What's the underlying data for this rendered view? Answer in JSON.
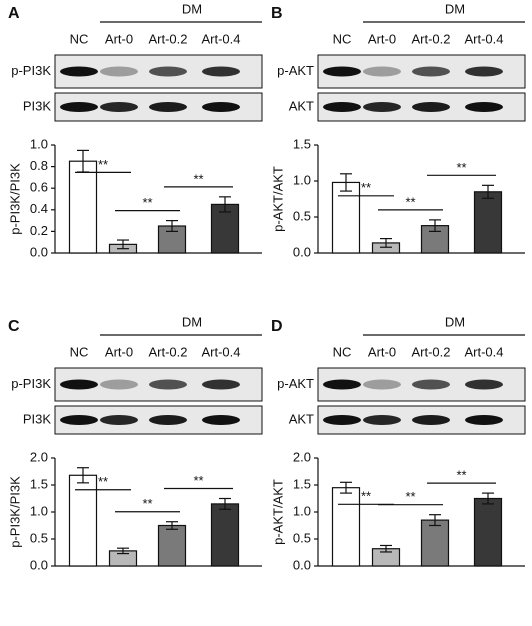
{
  "chart_data": [
    {
      "type": "bar",
      "panel": "A",
      "group_label": "DM",
      "blot_labels": [
        "p-PI3K",
        "PI3K"
      ],
      "categories": [
        "NC",
        "Art-0",
        "Art-0.2",
        "Art-0.4"
      ],
      "ylabel": "p-PI3K/PI3K",
      "values": [
        0.85,
        0.08,
        0.25,
        0.45
      ],
      "errors": [
        0.1,
        0.04,
        0.05,
        0.07
      ],
      "colors": [
        "#ffffff",
        "#b8b8b8",
        "#7a7a7a",
        "#383838"
      ],
      "ylim": [
        0,
        1.0
      ],
      "yticks": [
        {
          "value": 0,
          "label": "0.0"
        },
        0.2,
        0.4,
        0.6,
        0.8,
        {
          "value": 1.0,
          "label": "1.0"
        }
      ],
      "significance": [
        "**",
        "**",
        "**"
      ]
    },
    {
      "type": "bar",
      "panel": "B",
      "group_label": "DM",
      "blot_labels": [
        "p-AKT",
        "AKT"
      ],
      "categories": [
        "NC",
        "Art-0",
        "Art-0.2",
        "Art-0.4"
      ],
      "ylabel": "p-AKT/AKT",
      "values": [
        0.98,
        0.14,
        0.38,
        0.85
      ],
      "errors": [
        0.12,
        0.06,
        0.08,
        0.09
      ],
      "colors": [
        "#ffffff",
        "#b8b8b8",
        "#7a7a7a",
        "#383838"
      ],
      "ylim": [
        0,
        1.5
      ],
      "yticks": [
        {
          "value": 0,
          "label": "0.0"
        },
        0.5,
        {
          "value": 1.0,
          "label": "1.0"
        },
        1.5
      ],
      "significance": [
        "**",
        "**",
        "**"
      ]
    },
    {
      "type": "bar",
      "panel": "C",
      "group_label": "DM",
      "blot_labels": [
        "p-PI3K",
        "PI3K"
      ],
      "categories": [
        "NC",
        "Art-0",
        "Art-0.2",
        "Art-0.4"
      ],
      "ylabel": "p-PI3K/PI3K",
      "values": [
        1.68,
        0.28,
        0.75,
        1.15
      ],
      "errors": [
        0.14,
        0.05,
        0.07,
        0.1
      ],
      "colors": [
        "#ffffff",
        "#b8b8b8",
        "#7a7a7a",
        "#383838"
      ],
      "ylim": [
        0,
        2.0
      ],
      "yticks": [
        {
          "value": 0,
          "label": "0.0"
        },
        0.5,
        {
          "value": 1.0,
          "label": "1.0"
        },
        1.5,
        {
          "value": 2.0,
          "label": "2.0"
        }
      ],
      "significance": [
        "**",
        "**",
        "**"
      ]
    },
    {
      "type": "bar",
      "panel": "D",
      "group_label": "DM",
      "blot_labels": [
        "p-AKT",
        "AKT"
      ],
      "categories": [
        "NC",
        "Art-0",
        "Art-0.2",
        "Art-0.4"
      ],
      "ylabel": "p-AKT/AKT",
      "values": [
        1.45,
        0.32,
        0.85,
        1.25
      ],
      "errors": [
        0.1,
        0.06,
        0.1,
        0.1
      ],
      "colors": [
        "#ffffff",
        "#b8b8b8",
        "#7a7a7a",
        "#383838"
      ],
      "ylim": [
        0,
        2.0
      ],
      "yticks": [
        {
          "value": 0,
          "label": "0.0"
        },
        0.5,
        {
          "value": 1.0,
          "label": "1.0"
        },
        1.5,
        {
          "value": 2.0,
          "label": "2.0"
        }
      ],
      "significance": [
        "**",
        "**",
        "**"
      ]
    }
  ]
}
